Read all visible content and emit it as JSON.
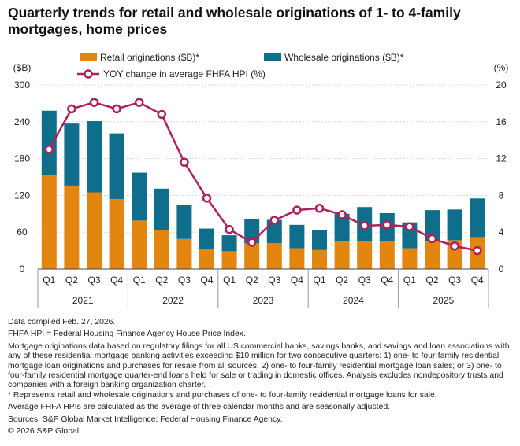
{
  "title": "Quarterly trends for retail and wholesale originations of 1- to 4-family mortgages, home prices",
  "chart_data": {
    "type": "bar",
    "stacked": true,
    "left_axis_unit": "($B)",
    "right_axis_unit": "(%)",
    "left_ticks": [
      "300",
      "240",
      "180",
      "120",
      "60",
      "0"
    ],
    "right_ticks": [
      "20",
      "16",
      "12",
      "8",
      "4",
      "0"
    ],
    "ylim": [
      0,
      300
    ],
    "y2lim": [
      0,
      20
    ],
    "categories": [
      "Q1",
      "Q2",
      "Q3",
      "Q4",
      "Q1",
      "Q2",
      "Q3",
      "Q4",
      "Q1",
      "Q2",
      "Q3",
      "Q4",
      "Q1",
      "Q2",
      "Q3",
      "Q4",
      "Q1",
      "Q2",
      "Q3",
      "Q4"
    ],
    "years": [
      "2021",
      "2022",
      "2023",
      "2024",
      "2025"
    ],
    "series": [
      {
        "name": "Retail originations ($B)*",
        "kind": "bar",
        "color": "#E2860F",
        "values": [
          153,
          136,
          125,
          114,
          79,
          63,
          49,
          32,
          29,
          42,
          42,
          34,
          31,
          45,
          46,
          45,
          34,
          46,
          47,
          52
        ]
      },
      {
        "name": "Wholesale originations ($B)*",
        "kind": "bar",
        "color": "#0E6E8C",
        "values": [
          105,
          101,
          116,
          107,
          78,
          68,
          56,
          34,
          26,
          40,
          38,
          38,
          32,
          45,
          55,
          46,
          42,
          50,
          50,
          63
        ]
      },
      {
        "name": "YOY change in average FHFA HPI (%)",
        "kind": "line",
        "axis": "right",
        "color": "#B0215A",
        "values": [
          13.0,
          17.4,
          18.1,
          17.4,
          18.1,
          16.8,
          11.6,
          7.7,
          4.3,
          2.9,
          5.3,
          6.4,
          6.6,
          5.9,
          4.7,
          4.8,
          4.6,
          3.3,
          2.5,
          2.0
        ]
      }
    ]
  },
  "notes": {
    "compiled": "Data compiled Feb. 27, 2026.",
    "fhfa": "FHFA HPI =  Federal Housing Finance Agency House Price Index.",
    "methodology": "Mortgage originations data based on regulatory filings for all US commercial banks, savings banks, and savings and loan associations with any of these residential mortgage banking activities exceeding $10 million for two consecutive quarters: 1) one- to four-family residential mortgage loan originations and purchases for resale from all sources; 2) one- to four-family residential mortgage loan sales; or 3) one- to four-family residential mortgage quarter-end loans held for sale or trading in domestic offices. Analysis excludes nondepository trusts and companies with a foreign banking organization charter.",
    "asterisk": "* Represents retail and wholesale originations and purchases of one- to four-family residential mortgage loans for sale.",
    "average": "Average FHFA HPIs are calculated as the average of three calendar months and are seasonally adjusted.",
    "sources": "Sources: S&P Global Market Intelligence; Federal Housing Finance Agency.",
    "copyright": "© 2026 S&P Global."
  }
}
